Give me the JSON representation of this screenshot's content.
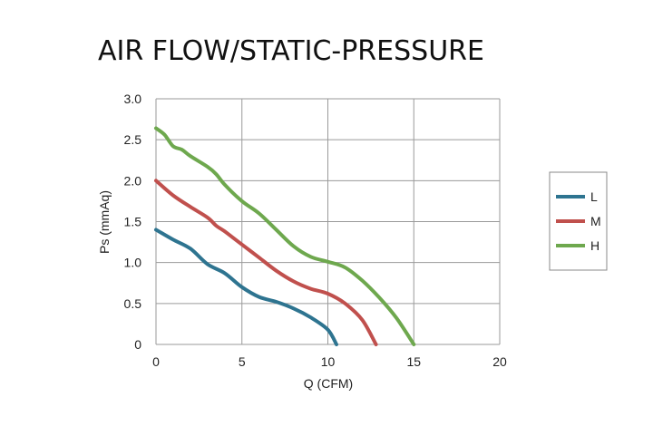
{
  "chart_data": {
    "type": "line",
    "title": "AIR FLOW/STATIC-PRESSURE",
    "xlabel": "Q (CFM)",
    "ylabel": "Ps (mmAq)",
    "xlim": [
      0,
      20
    ],
    "ylim": [
      0,
      3.0
    ],
    "xticks": [
      "0",
      "5",
      "10",
      "15",
      "20"
    ],
    "yticks": [
      "0",
      "0.5",
      "1.0",
      "1.5",
      "2.0",
      "2.5",
      "3.0"
    ],
    "grid": true,
    "legend_position": "right",
    "series": [
      {
        "name": "L",
        "color": "#2e7490",
        "x": [
          0,
          1,
          2,
          3,
          4,
          5,
          6,
          7,
          8,
          9,
          10,
          10.5
        ],
        "y": [
          1.4,
          1.28,
          1.17,
          0.98,
          0.87,
          0.7,
          0.58,
          0.52,
          0.44,
          0.33,
          0.18,
          0.0
        ]
      },
      {
        "name": "M",
        "color": "#c0504d",
        "x": [
          0,
          1,
          2,
          3,
          3.5,
          4,
          5,
          6,
          7,
          8,
          9,
          10,
          11,
          12,
          12.8
        ],
        "y": [
          2.0,
          1.82,
          1.68,
          1.55,
          1.45,
          1.38,
          1.22,
          1.06,
          0.9,
          0.77,
          0.68,
          0.62,
          0.5,
          0.3,
          0.0
        ]
      },
      {
        "name": "H",
        "color": "#6ea84e",
        "x": [
          0,
          0.5,
          1,
          1.5,
          2,
          3,
          3.5,
          4,
          5,
          6,
          7,
          8,
          9,
          10,
          11,
          12,
          13,
          14,
          15
        ],
        "y": [
          2.64,
          2.56,
          2.42,
          2.38,
          2.3,
          2.17,
          2.08,
          1.95,
          1.75,
          1.6,
          1.4,
          1.2,
          1.07,
          1.01,
          0.94,
          0.78,
          0.57,
          0.32,
          0.0
        ]
      }
    ]
  }
}
